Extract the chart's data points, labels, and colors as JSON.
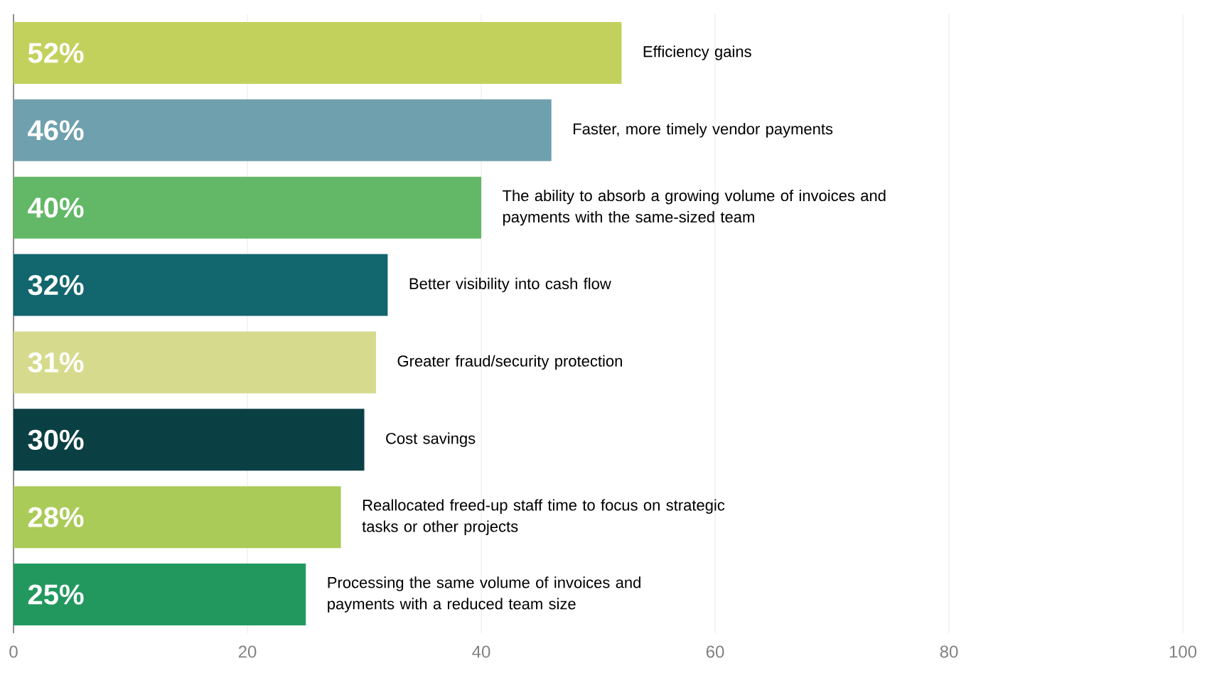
{
  "chart_data": {
    "type": "bar",
    "orientation": "horizontal",
    "categories": [
      "Efficiency gains",
      "Faster, more timely vendor payments",
      "The ability to absorb a growing volume of invoices and payments with the same-sized team",
      "Better visibility into cash flow",
      "Greater fraud/security protection",
      "Cost savings",
      "Reallocated freed-up staff time to focus on strategic tasks or other projects",
      "Processing the same volume of invoices and payments with a reduced team size"
    ],
    "values": [
      52,
      46,
      40,
      32,
      31,
      30,
      28,
      25
    ],
    "value_labels": [
      "52%",
      "46%",
      "40%",
      "32%",
      "31%",
      "30%",
      "28%",
      "25%"
    ],
    "colors": [
      "#c2d15c",
      "#6fa0ae",
      "#62b866",
      "#12666e",
      "#d6da8c",
      "#0a4044",
      "#aacb58",
      "#22985f"
    ],
    "xlim": [
      0,
      100
    ],
    "xticks": [
      0,
      20,
      40,
      60,
      80,
      100
    ],
    "grid": "x"
  }
}
